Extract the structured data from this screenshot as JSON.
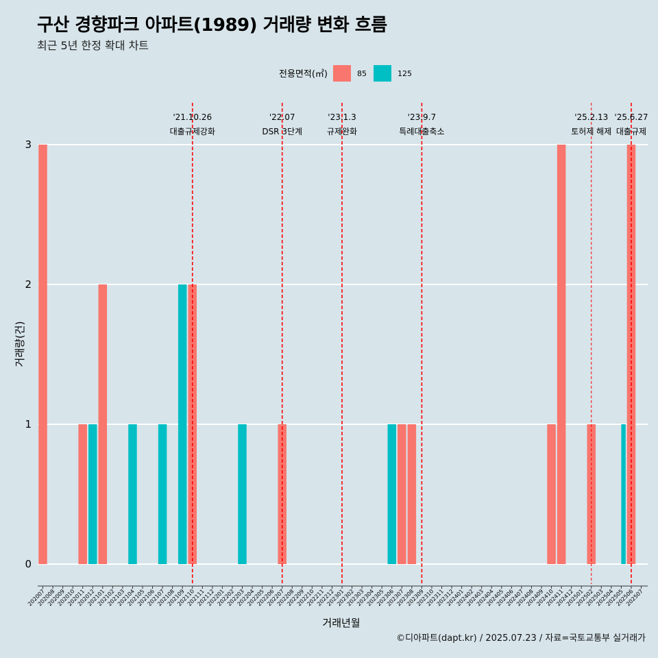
{
  "header": {
    "title": "구산 경향파크 아파트(1989) 거래량 변화 흐름",
    "subtitle": "최근 5년 한정 확대 차트"
  },
  "caption": "©디아파트(dapt.kr) / 2025.07.23 / 자료=국토교통부 실거래가",
  "chart_data": {
    "type": "bar",
    "xlabel": "거래년월",
    "ylabel": "거래량(건)",
    "ylim": [
      0,
      3
    ],
    "yticks": [
      0,
      1,
      2,
      3
    ],
    "grid": true,
    "legend": {
      "title": "전용면적(㎡)",
      "position": "top",
      "entries": [
        {
          "name": "85",
          "color": "#f8766d"
        },
        {
          "name": "125",
          "color": "#00bfc4"
        }
      ]
    },
    "categories": [
      "202007",
      "202008",
      "202009",
      "202010",
      "202011",
      "202012",
      "202101",
      "202102",
      "202103",
      "202104",
      "202105",
      "202106",
      "202107",
      "202108",
      "202109",
      "202110",
      "202111",
      "202112",
      "202201",
      "202202",
      "202203",
      "202204",
      "202205",
      "202206",
      "202207",
      "202208",
      "202209",
      "202210",
      "202211",
      "202212",
      "202301",
      "202302",
      "202303",
      "202304",
      "202305",
      "202306",
      "202307",
      "202308",
      "202309",
      "202310",
      "202311",
      "202312",
      "202401",
      "202402",
      "202403",
      "202404",
      "202405",
      "202406",
      "202407",
      "202408",
      "202409",
      "202410",
      "202411",
      "202412",
      "202501",
      "202502",
      "202503",
      "202504",
      "202505",
      "202506",
      "202507"
    ],
    "series": [
      {
        "name": "85",
        "color": "#f8766d",
        "points": [
          {
            "x": "202007",
            "y": 3
          },
          {
            "x": "202011",
            "y": 1
          },
          {
            "x": "202101",
            "y": 2
          },
          {
            "x": "202110",
            "y": 2
          },
          {
            "x": "202207",
            "y": 1
          },
          {
            "x": "202307",
            "y": 1
          },
          {
            "x": "202308",
            "y": 1
          },
          {
            "x": "202410",
            "y": 1
          },
          {
            "x": "202411",
            "y": 3
          },
          {
            "x": "202502",
            "y": 1
          },
          {
            "x": "202506",
            "y": 3
          }
        ]
      },
      {
        "name": "125",
        "color": "#00bfc4",
        "points": [
          {
            "x": "202012",
            "y": 1
          },
          {
            "x": "202104",
            "y": 1
          },
          {
            "x": "202107",
            "y": 1
          },
          {
            "x": "202109",
            "y": 2
          },
          {
            "x": "202203",
            "y": 1
          },
          {
            "x": "202306",
            "y": 1
          },
          {
            "x": "202505",
            "y": 1
          }
        ]
      }
    ],
    "dodged_months": [
      "202505"
    ],
    "annotations": [
      {
        "month": "202110",
        "date": "'21.10.26",
        "label": "대출규제강화",
        "line": "dashed"
      },
      {
        "month": "202207",
        "date": "'22.07",
        "label": "DSR 3단계",
        "line": "dashed"
      },
      {
        "month": "202301",
        "date": "'23.1.3",
        "label": "규제완화",
        "line": "dashed"
      },
      {
        "month": "202309",
        "date": "'23.9.7",
        "label": "특례대출축소",
        "line": "dashed"
      },
      {
        "month": "202502",
        "date": "'25.2.13",
        "label": "토허제 해제",
        "line": "thin-dashed"
      },
      {
        "month": "202506",
        "date": "'25.6.27",
        "label": "대출규제",
        "line": "dashed"
      }
    ]
  }
}
